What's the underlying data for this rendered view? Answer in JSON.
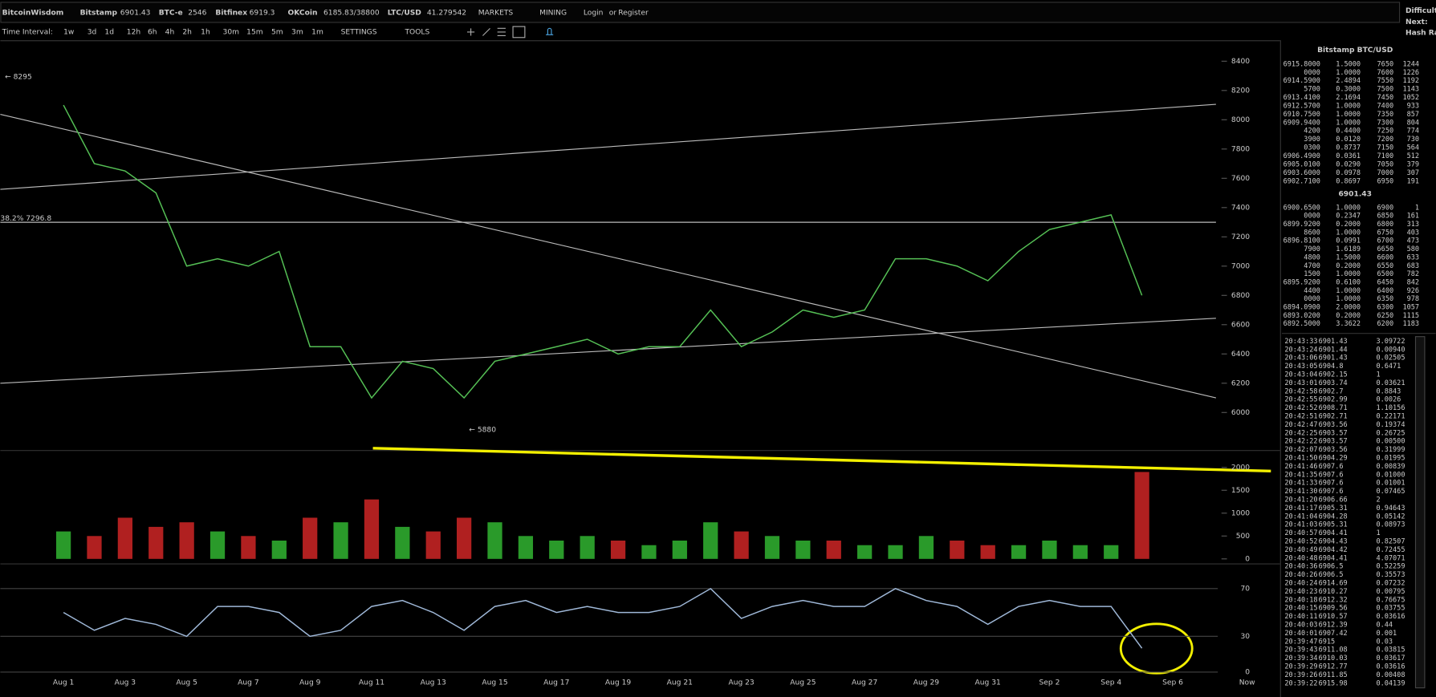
{
  "header": {
    "site": "BitcoinWisdom",
    "tickers": [
      {
        "name": "Bitstamp",
        "price": "6901.43"
      },
      {
        "name": "BTC-e",
        "price": "2546"
      },
      {
        "name": "Bitfinex",
        "price": "6919.3"
      },
      {
        "name": "OKCoin",
        "price": "6185.83/38800"
      },
      {
        "name": "LTC/USD",
        "price": "41.279542"
      }
    ],
    "menus": [
      "MARKETS",
      "MINING"
    ],
    "login": "Login",
    "or": "or",
    "register": "Register",
    "side": [
      "Difficult",
      "Next:",
      "Hash Ra"
    ]
  },
  "toolbar": {
    "label": "Time Interval:",
    "intervals": [
      "1w",
      "3d",
      "1d",
      "12h",
      "6h",
      "4h",
      "2h",
      "1h",
      "30m",
      "15m",
      "5m",
      "3m",
      "1m"
    ],
    "menus": [
      "SETTINGS",
      "TOOLS"
    ]
  },
  "chart_data": [
    {
      "type": "line",
      "name": "price",
      "color": "#55c055",
      "categories": [
        "Aug 1",
        null,
        "Aug 3",
        null,
        "Aug 5",
        null,
        "Aug 7",
        null,
        "Aug 9",
        null,
        "Aug 11",
        null,
        "Aug 13",
        null,
        "Aug 15",
        null,
        "Aug 17",
        null,
        "Aug 19",
        null,
        "Aug 21",
        null,
        "Aug 23",
        null,
        "Aug 25",
        null,
        "Aug 27",
        null,
        "Aug 29",
        null,
        "Aug 31",
        null,
        "Sep 2",
        null,
        "Sep 4",
        null,
        "Sep 6",
        "Now"
      ],
      "values": [
        8100,
        7700,
        7650,
        7500,
        7000,
        7050,
        7000,
        7100,
        6450,
        6450,
        6100,
        6350,
        6300,
        6100,
        6350,
        6400,
        6450,
        6500,
        6400,
        6450,
        6450,
        6700,
        6450,
        6550,
        6700,
        6650,
        6700,
        7050,
        7050,
        7000,
        6900,
        7100,
        7250,
        7300,
        7350,
        6800,
        null,
        null
      ],
      "ylim": [
        5756,
        8537
      ],
      "yticks": [
        6000,
        6200,
        6400,
        6600,
        6800,
        7000,
        7200,
        7400,
        7600,
        7800,
        8000,
        8200,
        8400
      ],
      "annotations": [
        "← 8295",
        "38.2% 7296.8",
        "← 5880"
      ]
    },
    {
      "type": "bar",
      "name": "volume",
      "up_color": "#2a9a2a",
      "down_color": "#b02020",
      "values": [
        600,
        500,
        900,
        700,
        800,
        600,
        500,
        400,
        900,
        800,
        1300,
        700,
        600,
        900,
        800,
        500,
        400,
        500,
        400,
        300,
        400,
        800,
        600,
        500,
        400,
        400,
        300,
        300,
        500,
        400,
        300,
        300,
        400,
        300,
        300,
        1900,
        null,
        null
      ],
      "ylim": [
        -80,
        2320
      ],
      "yticks": [
        0,
        500,
        1000,
        1500,
        2000
      ]
    },
    {
      "type": "line",
      "name": "rsi",
      "color": "#9fb8d8",
      "values": [
        50,
        35,
        45,
        40,
        30,
        55,
        55,
        50,
        30,
        35,
        55,
        60,
        50,
        35,
        55,
        60,
        50,
        55,
        50,
        50,
        55,
        70,
        45,
        55,
        60,
        55,
        55,
        70,
        60,
        55,
        40,
        55,
        60,
        55,
        55,
        20,
        null,
        null
      ],
      "ylim": [
        -4,
        88
      ],
      "yticks": [
        0,
        30,
        70
      ],
      "grid": true
    }
  ],
  "orderbook": {
    "title": "Bitstamp BTC/USD",
    "last": "6901.43",
    "asks": [
      [
        "6915.8000",
        "1.5000",
        "7650",
        "1244"
      ],
      [
        "0000",
        "1.0000",
        "7600",
        "1226"
      ],
      [
        "6914.5900",
        "2.4894",
        "7550",
        "1192"
      ],
      [
        "5700",
        "0.3000",
        "7500",
        "1143"
      ],
      [
        "6913.4100",
        "2.1694",
        "7450",
        "1052"
      ],
      [
        "6912.5700",
        "1.0000",
        "7400",
        "933"
      ],
      [
        "6910.7500",
        "1.0000",
        "7350",
        "857"
      ],
      [
        "6909.9400",
        "1.0000",
        "7300",
        "804"
      ],
      [
        "4200",
        "0.4400",
        "7250",
        "774"
      ],
      [
        "3900",
        "0.0120",
        "7200",
        "730"
      ],
      [
        "0300",
        "0.8737",
        "7150",
        "564"
      ],
      [
        "6906.4900",
        "0.0361",
        "7100",
        "512"
      ],
      [
        "6905.0100",
        "0.0290",
        "7050",
        "379"
      ],
      [
        "6903.6000",
        "0.0978",
        "7000",
        "307"
      ],
      [
        "6902.7100",
        "0.8697",
        "6950",
        "191"
      ]
    ],
    "bids": [
      [
        "6900.6500",
        "1.0000",
        "6900",
        "1"
      ],
      [
        "0000",
        "0.2347",
        "6850",
        "161"
      ],
      [
        "6899.9200",
        "0.2000",
        "6800",
        "313"
      ],
      [
        "8600",
        "1.0000",
        "6750",
        "403"
      ],
      [
        "6896.8100",
        "0.0991",
        "6700",
        "473"
      ],
      [
        "7900",
        "1.6189",
        "6650",
        "580"
      ],
      [
        "4800",
        "1.5000",
        "6600",
        "633"
      ],
      [
        "4700",
        "0.2000",
        "6550",
        "683"
      ],
      [
        "1500",
        "1.0000",
        "6500",
        "782"
      ],
      [
        "6895.9200",
        "0.6100",
        "6450",
        "842"
      ],
      [
        "4400",
        "1.0000",
        "6400",
        "926"
      ],
      [
        "0000",
        "1.0000",
        "6350",
        "978"
      ],
      [
        "6894.0900",
        "2.0000",
        "6300",
        "1057"
      ],
      [
        "6893.0200",
        "0.2000",
        "6250",
        "1115"
      ],
      [
        "6892.5000",
        "3.3622",
        "6200",
        "1183"
      ]
    ]
  },
  "trades": {
    "up_color": "#3fc03f",
    "down_color": "#e03030",
    "rows": [
      [
        "20:43:33",
        "6901.43",
        "3.09722",
        0
      ],
      [
        "20:43:24",
        "6901.44",
        "0.00940",
        0
      ],
      [
        "20:43:06",
        "6901.43",
        "0.02505",
        0
      ],
      [
        "20:43:05",
        "6904.8",
        "0.6471",
        1
      ],
      [
        "20:43:04",
        "6902.15",
        "1",
        0
      ],
      [
        "20:43:01",
        "6903.74",
        "0.03621",
        1
      ],
      [
        "20:42:58",
        "6902.7",
        "0.8843",
        0
      ],
      [
        "20:42:55",
        "6902.99",
        "0.0026",
        0
      ],
      [
        "20:42:52",
        "6908.71",
        "1.10156",
        1
      ],
      [
        "20:42:51",
        "6902.71",
        "0.22171",
        0
      ],
      [
        "20:42:47",
        "6903.56",
        "0.19374",
        0
      ],
      [
        "20:42:25",
        "6903.57",
        "0.26725",
        0
      ],
      [
        "20:42:22",
        "6903.57",
        "0.00500",
        0
      ],
      [
        "20:42:07",
        "6903.56",
        "0.31999",
        0
      ],
      [
        "20:41:50",
        "6904.29",
        "0.01995",
        0
      ],
      [
        "20:41:46",
        "6907.6",
        "0.00839",
        1
      ],
      [
        "20:41:35",
        "6907.6",
        "0.01000",
        1
      ],
      [
        "20:41:33",
        "6907.6",
        "0.01001",
        1
      ],
      [
        "20:41:30",
        "6907.6",
        "0.07465",
        1
      ],
      [
        "20:41:20",
        "6906.66",
        "2",
        1
      ],
      [
        "20:41:17",
        "6905.31",
        "0.94643",
        1
      ],
      [
        "20:41:04",
        "6904.28",
        "0.05142",
        0
      ],
      [
        "20:41:03",
        "6905.31",
        "0.08973",
        1
      ],
      [
        "20:40:57",
        "6904.41",
        "1",
        0
      ],
      [
        "20:40:52",
        "6904.43",
        "0.82507",
        0
      ],
      [
        "20:40:49",
        "6904.42",
        "0.72455",
        0
      ],
      [
        "20:40:48",
        "6904.41",
        "4.07071",
        0
      ],
      [
        "20:40:36",
        "6906.5",
        "0.52259",
        1
      ],
      [
        "20:40:26",
        "6906.5",
        "0.35573",
        0
      ],
      [
        "20:40:24",
        "6914.69",
        "0.07232",
        1
      ],
      [
        "20:40:23",
        "6910.27",
        "0.00795",
        0
      ],
      [
        "20:40:18",
        "6912.32",
        "0.76675",
        0
      ],
      [
        "20:40:15",
        "6909.56",
        "0.03755",
        1
      ],
      [
        "20:40:11",
        "6910.57",
        "0.03616",
        1
      ],
      [
        "20:40:03",
        "6912.39",
        "0.44",
        0
      ],
      [
        "20:40:01",
        "6907.42",
        "0.001",
        0
      ],
      [
        "20:39:47",
        "6915",
        "0.03",
        1
      ],
      [
        "20:39:43",
        "6911.08",
        "0.03815",
        1
      ],
      [
        "20:39:34",
        "6910.03",
        "0.03617",
        0
      ],
      [
        "20:39:29",
        "6912.77",
        "0.03616",
        1
      ],
      [
        "20:39:26",
        "6911.85",
        "0.00408",
        0
      ],
      [
        "20:39:22",
        "6915.98",
        "0.04139",
        1
      ]
    ]
  }
}
